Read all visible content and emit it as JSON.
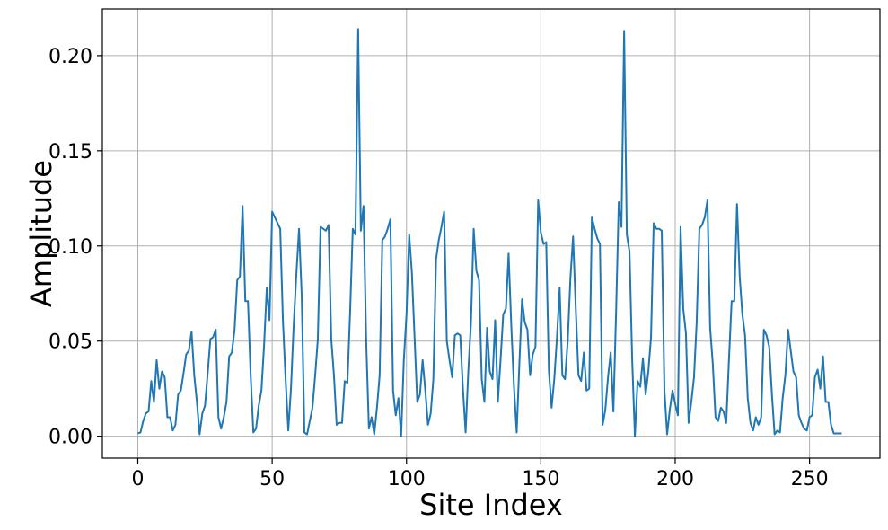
{
  "chart_data": {
    "type": "line",
    "xlabel": "Site Index",
    "ylabel": "Amplitude",
    "xlim": [
      -13.2,
      276.2
    ],
    "ylim": [
      -0.0115,
      0.2245
    ],
    "xticks": [
      0,
      50,
      100,
      150,
      200,
      250
    ],
    "xtick_labels": [
      "0",
      "50",
      "100",
      "150",
      "200",
      "250"
    ],
    "yticks": [
      0.0,
      0.05,
      0.1,
      0.15,
      0.2
    ],
    "ytick_labels": [
      "0.00",
      "0.05",
      "0.10",
      "0.15",
      "0.20"
    ],
    "grid": true,
    "line_color": "#1f77b4",
    "series": [
      {
        "values": [
          0.0015,
          0.002,
          0.008,
          0.012,
          0.013,
          0.029,
          0.018,
          0.04,
          0.025,
          0.034,
          0.031,
          0.01,
          0.01,
          0.003,
          0.006,
          0.022,
          0.024,
          0.033,
          0.043,
          0.045,
          0.055,
          0.032,
          0.018,
          0.001,
          0.012,
          0.016,
          0.033,
          0.051,
          0.052,
          0.056,
          0.01,
          0.004,
          0.01,
          0.018,
          0.042,
          0.044,
          0.056,
          0.082,
          0.084,
          0.121,
          0.071,
          0.071,
          0.032,
          0.002,
          0.004,
          0.016,
          0.024,
          0.048,
          0.078,
          0.061,
          0.118,
          0.115,
          0.112,
          0.109,
          0.061,
          0.03,
          0.003,
          0.025,
          0.058,
          0.085,
          0.109,
          0.074,
          0.002,
          0.001,
          0.008,
          0.015,
          0.032,
          0.051,
          0.11,
          0.109,
          0.108,
          0.111,
          0.051,
          0.032,
          0.006,
          0.007,
          0.007,
          0.029,
          0.028,
          0.065,
          0.109,
          0.106,
          0.214,
          0.108,
          0.121,
          0.05,
          0.004,
          0.01,
          0.001,
          0.015,
          0.032,
          0.103,
          0.105,
          0.109,
          0.114,
          0.024,
          0.011,
          0.02,
          0.0,
          0.04,
          0.064,
          0.106,
          0.086,
          0.052,
          0.018,
          0.022,
          0.04,
          0.024,
          0.006,
          0.012,
          0.03,
          0.093,
          0.103,
          0.11,
          0.118,
          0.05,
          0.04,
          0.031,
          0.053,
          0.054,
          0.053,
          0.025,
          0.002,
          0.034,
          0.06,
          0.109,
          0.087,
          0.082,
          0.03,
          0.018,
          0.057,
          0.034,
          0.03,
          0.061,
          0.018,
          0.04,
          0.064,
          0.067,
          0.096,
          0.058,
          0.026,
          0.002,
          0.038,
          0.072,
          0.06,
          0.056,
          0.032,
          0.043,
          0.047,
          0.124,
          0.107,
          0.101,
          0.102,
          0.034,
          0.015,
          0.03,
          0.052,
          0.078,
          0.032,
          0.03,
          0.05,
          0.083,
          0.105,
          0.067,
          0.032,
          0.029,
          0.044,
          0.024,
          0.025,
          0.115,
          0.109,
          0.104,
          0.101,
          0.006,
          0.014,
          0.031,
          0.044,
          0.013,
          0.065,
          0.123,
          0.11,
          0.213,
          0.106,
          0.097,
          0.04,
          0.0,
          0.029,
          0.026,
          0.041,
          0.022,
          0.034,
          0.052,
          0.112,
          0.109,
          0.109,
          0.108,
          0.024,
          0.001,
          0.014,
          0.024,
          0.017,
          0.011,
          0.11,
          0.067,
          0.054,
          0.007,
          0.018,
          0.031,
          0.06,
          0.109,
          0.111,
          0.115,
          0.124,
          0.057,
          0.038,
          0.01,
          0.008,
          0.015,
          0.013,
          0.007,
          0.04,
          0.071,
          0.071,
          0.122,
          0.084,
          0.064,
          0.053,
          0.02,
          0.007,
          0.003,
          0.01,
          0.006,
          0.01,
          0.056,
          0.053,
          0.047,
          0.022,
          0.001,
          0.003,
          0.002,
          0.02,
          0.032,
          0.056,
          0.045,
          0.034,
          0.031,
          0.011,
          0.007,
          0.004,
          0.003,
          0.01,
          0.011,
          0.031,
          0.035,
          0.025,
          0.042,
          0.018,
          0.018,
          0.006,
          0.0015,
          0.0015,
          0.0015,
          0.0015
        ]
      }
    ]
  }
}
